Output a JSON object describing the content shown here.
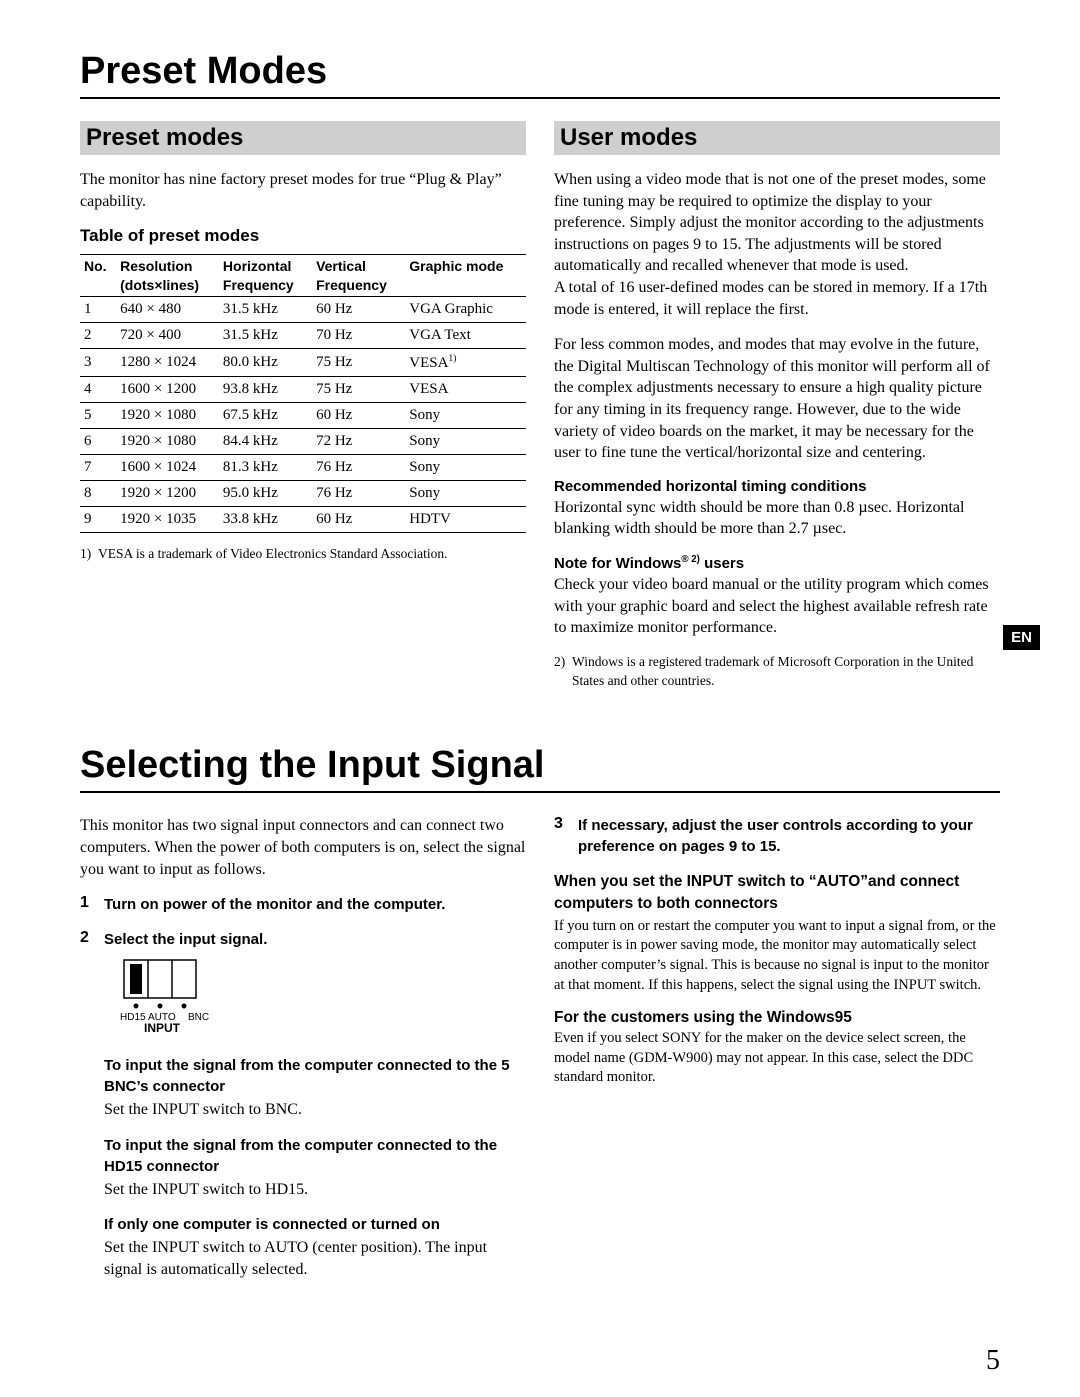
{
  "page_number": "5",
  "en_tab": "EN",
  "section1": {
    "title": "Preset Modes",
    "left": {
      "heading": "Preset modes",
      "intro": "The monitor has nine factory preset modes for true “Plug & Play” capability.",
      "table_title": "Table of preset modes",
      "headers": {
        "no": "No.",
        "res1": "Resolution",
        "res2": "(dots×lines)",
        "hf1": "Horizontal",
        "hf2": "Frequency",
        "vf1": "Vertical",
        "vf2": "Frequency",
        "gm": "Graphic mode"
      },
      "rows": [
        {
          "no": "1",
          "res": "640 × 480",
          "hf": "31.5 kHz",
          "vf": "60 Hz",
          "gm": "VGA Graphic"
        },
        {
          "no": "2",
          "res": "720 × 400",
          "hf": "31.5 kHz",
          "vf": "70 Hz",
          "gm": "VGA Text"
        },
        {
          "no": "3",
          "res": "1280 × 1024",
          "hf": "80.0 kHz",
          "vf": "75 Hz",
          "gm": "VESA 1)",
          "gm_plain": "VESA",
          "gm_sup": "1)"
        },
        {
          "no": "4",
          "res": "1600 × 1200",
          "hf": "93.8 kHz",
          "vf": "75 Hz",
          "gm": "VESA"
        },
        {
          "no": "5",
          "res": "1920 × 1080",
          "hf": "67.5 kHz",
          "vf": "60 Hz",
          "gm": "Sony"
        },
        {
          "no": "6",
          "res": "1920 × 1080",
          "hf": "84.4 kHz",
          "vf": "72 Hz",
          "gm": "Sony"
        },
        {
          "no": "7",
          "res": "1600 × 1024",
          "hf": "81.3 kHz",
          "vf": "76 Hz",
          "gm": "Sony"
        },
        {
          "no": "8",
          "res": "1920 × 1200",
          "hf": "95.0 kHz",
          "vf": "76 Hz",
          "gm": "Sony"
        },
        {
          "no": "9",
          "res": "1920 × 1035",
          "hf": "33.8 kHz",
          "vf": "60 Hz",
          "gm": "HDTV"
        }
      ],
      "footnote1_num": "1)",
      "footnote1": "VESA is a trademark of Video Electronics Standard Association."
    },
    "right": {
      "heading": "User modes",
      "para1": "When using a video mode that is not one of the preset modes, some fine tuning may be required to optimize the display to your preference.  Simply adjust the monitor according to the adjustments instructions on pages 9 to 15. The adjustments will be stored automatically and recalled whenever that mode is used.",
      "para1b": "A total of 16 user-defined modes can be stored in memory. If a 17th mode is entered, it will replace the first.",
      "para2": "For less common modes, and modes that may evolve in the future, the Digital Multiscan Technology of this monitor will perform all of the complex adjustments necessary to ensure a high quality picture for any timing in its frequency range. However, due to the wide variety of video boards on the market, it may be necessary for the user to fine tune the vertical/horizontal size and centering.",
      "h_timing_title": "Recommended horizontal timing conditions",
      "h_timing_body": "Horizontal sync width should be more than 0.8 µsec. Horizontal blanking width should be more than 2.7 µsec.",
      "win_note_title_pre": "Note for Windows",
      "win_note_title_sup": "® 2)",
      "win_note_title_post": " users",
      "win_note_body": "Check your video board manual or the utility program which comes with your graphic board and select the highest available refresh rate to maximize monitor performance.",
      "footnote2_num": "2)",
      "footnote2": "Windows is a registered trademark of Microsoft Corporation in the United States and other countries."
    }
  },
  "section2": {
    "title": "Selecting the Input Signal",
    "left": {
      "intro": "This monitor has two signal input connectors and can connect two computers.  When the power of both computers is on, select the signal you want to input as follows.",
      "step1": "Turn on power of the monitor and the computer.",
      "step2": "Select the input signal.",
      "switch_labels": {
        "l": "HD15",
        "c": "AUTO",
        "r": "BNC",
        "bottom": "INPUT"
      },
      "bnc_title": "To input the signal from the computer connected to the 5 BNC’s connector",
      "bnc_body": "Set the INPUT switch to BNC.",
      "hd15_title": "To input the signal from the computer connected to the HD15 connector",
      "hd15_body": "Set the INPUT switch to HD15.",
      "one_title": "If only one computer is connected or turned on",
      "one_body": "Set the INPUT switch to AUTO (center position).  The input signal is automatically selected."
    },
    "right": {
      "step3": "If necessary, adjust the user controls according to your preference on pages 9 to 15.",
      "auto_title": "When you set the INPUT switch to “AUTO”and connect computers to both connectors",
      "auto_body": "If you turn on or restart the computer you want to input a signal from, or the computer is in power saving mode, the monitor may automatically select another computer’s signal.  This is because no signal is input to the monitor at that moment. If this happens, select the signal using the INPUT switch.",
      "win95_title": "For the customers using the Windows95",
      "win95_body": "Even if you select SONY for the maker on the device select screen, the model name (GDM-W900) may not appear. In this case, select the DDC standard monitor."
    }
  }
}
